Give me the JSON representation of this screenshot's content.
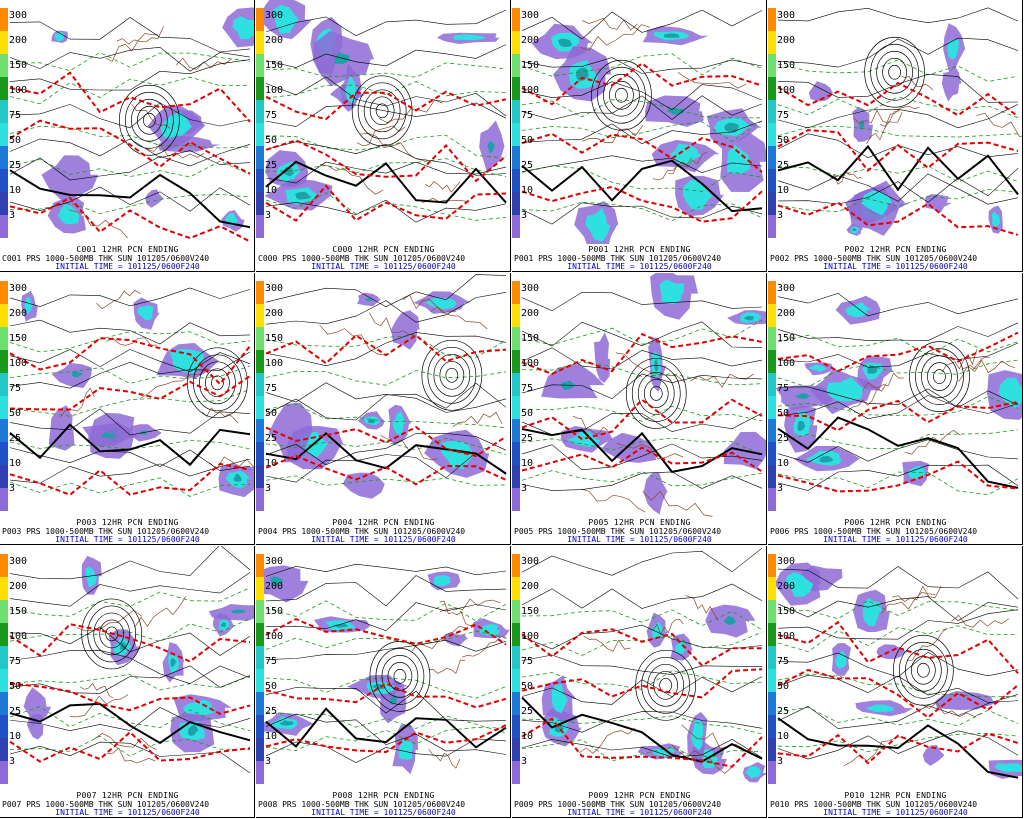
{
  "tick_labels": [
    "300",
    "200",
    "150",
    "100",
    "75",
    "50",
    "25",
    "10",
    "3"
  ],
  "colors": {
    "purple": "#8e6ad6",
    "cyan": "#2ee0e0",
    "teal": "#1fa0a8",
    "red": "#e00000",
    "brown": "#8b4a2b",
    "green": "#1a9a1a",
    "black": "#000000"
  },
  "panels": [
    {
      "member": "C001",
      "title": "C001  12HR PCN ENDING",
      "line": "C001  PRS 1000-500MB THK SUN 101205/0600V240",
      "init": "INITIAL TIME = 101125/0600F240"
    },
    {
      "member": "C000",
      "title": "C000  12HR PCN ENDING",
      "line": "C000  PRS 1000-500MB THK SUN 101205/0600V240",
      "init": "INITIAL TIME = 101125/0600F240"
    },
    {
      "member": "P001",
      "title": "P001  12HR PCN ENDING",
      "line": "P001  PRS 1000-500MB THK SUN 101205/0600V240",
      "init": "INITIAL TIME = 101125/0600F240"
    },
    {
      "member": "P002",
      "title": "P002  12HR PCN ENDING",
      "line": "P002  PRS 1000-500MB THK SUN 101205/0600V240",
      "init": "INITIAL TIME = 101125/0600F240"
    },
    {
      "member": "P003",
      "title": "P003  12HR PCN ENDING",
      "line": "P003  PRS 1000-500MB THK SUN 101205/0600V240",
      "init": "INITIAL TIME = 101125/0600F240"
    },
    {
      "member": "P004",
      "title": "P004  12HR PCN ENDING",
      "line": "P004  PRS 1000-500MB THK SUN 101205/0600V240",
      "init": "INITIAL TIME = 101125/0600F240"
    },
    {
      "member": "P005",
      "title": "P005  12HR PCN ENDING",
      "line": "P005  PRS 1000-500MB THK SUN 101205/0600V240",
      "init": "INITIAL TIME = 101125/0600F240"
    },
    {
      "member": "P006",
      "title": "P006  12HR PCN ENDING",
      "line": "P006  PRS 1000-500MB THK SUN 101205/0600V240",
      "init": "INITIAL TIME = 101125/0600F240"
    },
    {
      "member": "P007",
      "title": "P007  12HR PCN ENDING",
      "line": "P007  PRS 1000-500MB THK SUN 101205/0600V240",
      "init": "INITIAL TIME = 101125/0600F240"
    },
    {
      "member": "P008",
      "title": "P008  12HR PCN ENDING",
      "line": "P008  PRS 1000-500MB THK SUN 101205/0600V240",
      "init": "INITIAL TIME = 101125/0600F240"
    },
    {
      "member": "P009",
      "title": "P009  12HR PCN ENDING",
      "line": "P009  PRS 1000-500MB THK SUN 101205/0600V240",
      "init": "INITIAL TIME = 101125/0600F240"
    },
    {
      "member": "P010",
      "title": "P010  12HR PCN ENDING",
      "line": "P010  PRS 1000-500MB THK SUN 101205/0600V240",
      "init": "INITIAL TIME = 101125/0600F240"
    }
  ]
}
